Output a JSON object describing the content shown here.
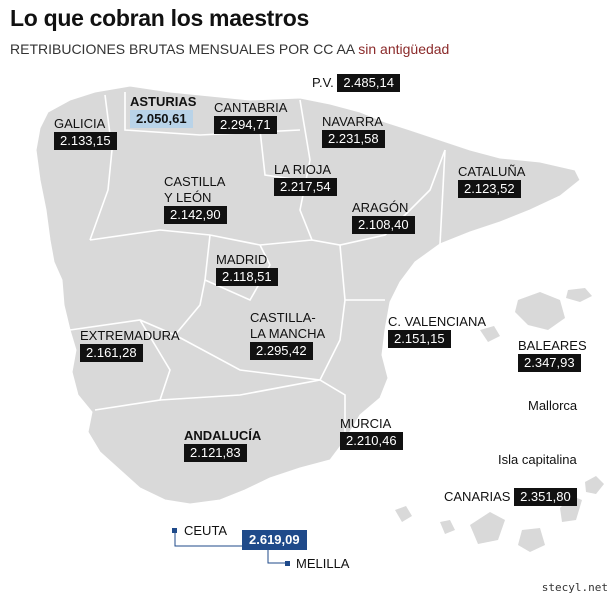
{
  "title": "Lo que cobran los maestros",
  "subtitle": "RETRIBUCIONES BRUTAS MENSUALES  POR CC AA",
  "subtitle_accent": "sin antigüedad",
  "colors": {
    "land": "#d9d9d9",
    "sea": "#ffffff",
    "value_box": "#111111",
    "lowest": "#b9d3e8",
    "highest": "#1f4a8a"
  },
  "regions": {
    "pv": {
      "name": "P.V.",
      "value": "2.485,14"
    },
    "asturias": {
      "name": "ASTURIAS",
      "value": "2.050,61"
    },
    "cantabria": {
      "name": "CANTABRIA",
      "value": "2.294,71"
    },
    "galicia": {
      "name": "GALICIA",
      "value": "2.133,15"
    },
    "navarra": {
      "name": "NAVARRA",
      "value": "2.231,58"
    },
    "castilla_leon": {
      "name_line1": "CASTILLA",
      "name_line2": "Y LEÓN",
      "value": "2.142,90"
    },
    "la_rioja": {
      "name": "LA RIOJA",
      "value": "2.217,54"
    },
    "cataluna": {
      "name": "CATALUÑA",
      "value": "2.123,52"
    },
    "aragon": {
      "name": "ARAGÓN",
      "value": "2.108,40"
    },
    "madrid": {
      "name": "MADRID",
      "value": "2.118,51"
    },
    "extremadura": {
      "name": "EXTREMADURA",
      "value": "2.161,28"
    },
    "castilla_mancha": {
      "name_line1": "CASTILLA-",
      "name_line2": "LA MANCHA",
      "value": "2.295,42"
    },
    "c_valenciana": {
      "name": "C. VALENCIANA",
      "value": "2.151,15"
    },
    "baleares": {
      "name": "BALEARES",
      "value": "2.347,93",
      "note": "Mallorca"
    },
    "murcia": {
      "name": "MURCIA",
      "value": "2.210,46"
    },
    "andalucia": {
      "name": "ANDALUCÍA",
      "value": "2.121,83"
    },
    "canarias": {
      "name": "CANARIAS",
      "value": "2.351,80",
      "note": "Isla capitalina"
    },
    "ceuta": {
      "name": "CEUTA"
    },
    "melilla": {
      "name": "MELILLA"
    },
    "ceuta_melilla_value": "2.619,09"
  },
  "credit": "stecyl.net"
}
